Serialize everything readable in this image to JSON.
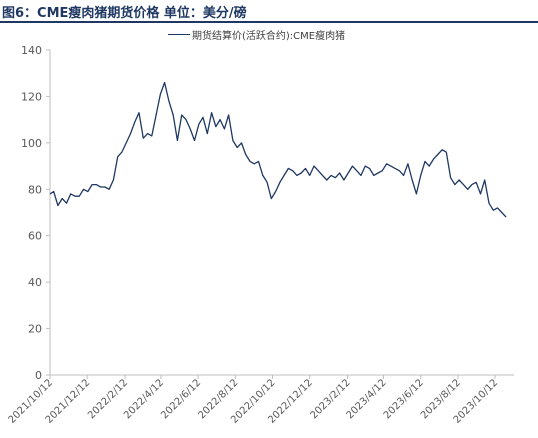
{
  "title": "图6：CME瘦肉猪期货价格 单位：美分/磅",
  "colors": {
    "series": "#1f3863",
    "axis": "#bfbfbf",
    "title": "#1f3863",
    "text": "#595959"
  },
  "chart_data": {
    "type": "line",
    "title": "图6：CME瘦肉猪期货价格 单位：美分/磅",
    "xlabel": "",
    "ylabel": "",
    "ylim": [
      0,
      140
    ],
    "yticks": [
      0,
      20,
      40,
      60,
      80,
      100,
      120,
      140
    ],
    "xlim": [
      "2021-10-12",
      "2023-11-12"
    ],
    "x_tick_labels": [
      "2021/10/12",
      "2021/12/12",
      "2022/2/12",
      "2022/4/12",
      "2022/6/12",
      "2022/8/12",
      "2022/10/12",
      "2022/12/12",
      "2023/2/12",
      "2023/4/12",
      "2023/6/12",
      "2023/8/12",
      "2023/10/12"
    ],
    "legend": "top-center",
    "grid": false,
    "series": [
      {
        "name": "期货结算价(活跃合约):CME瘦肉猪",
        "x": [
          "2021-10-12",
          "2021-10-18",
          "2021-10-25",
          "2021-11-01",
          "2021-11-08",
          "2021-11-15",
          "2021-11-22",
          "2021-11-29",
          "2021-12-06",
          "2021-12-13",
          "2021-12-20",
          "2021-12-27",
          "2022-01-03",
          "2022-01-10",
          "2022-01-17",
          "2022-01-24",
          "2022-01-31",
          "2022-02-07",
          "2022-02-14",
          "2022-02-21",
          "2022-02-28",
          "2022-03-07",
          "2022-03-14",
          "2022-03-21",
          "2022-03-28",
          "2022-04-04",
          "2022-04-11",
          "2022-04-18",
          "2022-04-25",
          "2022-05-02",
          "2022-05-09",
          "2022-05-16",
          "2022-05-23",
          "2022-05-30",
          "2022-06-06",
          "2022-06-13",
          "2022-06-20",
          "2022-06-27",
          "2022-07-04",
          "2022-07-11",
          "2022-07-18",
          "2022-07-25",
          "2022-08-01",
          "2022-08-08",
          "2022-08-15",
          "2022-08-22",
          "2022-08-29",
          "2022-09-05",
          "2022-09-12",
          "2022-09-19",
          "2022-09-26",
          "2022-10-03",
          "2022-10-10",
          "2022-10-17",
          "2022-10-24",
          "2022-10-31",
          "2022-11-07",
          "2022-11-14",
          "2022-11-21",
          "2022-11-28",
          "2022-12-05",
          "2022-12-12",
          "2022-12-19",
          "2022-12-26",
          "2023-01-02",
          "2023-01-09",
          "2023-01-16",
          "2023-01-23",
          "2023-01-30",
          "2023-02-06",
          "2023-02-13",
          "2023-02-20",
          "2023-02-27",
          "2023-03-06",
          "2023-03-13",
          "2023-03-20",
          "2023-03-27",
          "2023-04-03",
          "2023-04-10",
          "2023-04-17",
          "2023-04-24",
          "2023-05-01",
          "2023-05-08",
          "2023-05-15",
          "2023-05-22",
          "2023-05-29",
          "2023-06-05",
          "2023-06-12",
          "2023-06-19",
          "2023-06-26",
          "2023-07-03",
          "2023-07-10",
          "2023-07-17",
          "2023-07-24",
          "2023-07-31",
          "2023-08-07",
          "2023-08-14",
          "2023-08-21",
          "2023-08-28",
          "2023-09-04",
          "2023-09-11",
          "2023-09-18",
          "2023-09-25",
          "2023-10-02",
          "2023-10-09",
          "2023-10-16",
          "2023-10-23",
          "2023-10-30"
        ],
        "values": [
          78,
          79,
          73,
          76,
          74,
          78,
          77,
          77,
          80,
          79,
          82,
          82,
          81,
          81,
          80,
          84,
          94,
          96,
          100,
          104,
          109,
          113,
          102,
          104,
          103,
          112,
          121,
          126,
          118,
          112,
          101,
          112,
          110,
          106,
          101,
          108,
          111,
          104,
          113,
          107,
          110,
          106,
          112,
          101,
          98,
          100,
          95,
          92,
          91,
          92,
          86,
          83,
          76,
          79,
          83,
          86,
          89,
          88,
          86,
          87,
          89,
          86,
          90,
          88,
          86,
          84,
          86,
          85,
          87,
          84,
          87,
          90,
          88,
          86,
          90,
          89,
          86,
          87,
          88,
          91,
          90,
          89,
          88,
          86,
          91,
          84,
          78,
          86,
          92,
          90,
          93,
          95,
          97,
          96,
          85,
          82,
          84,
          82,
          80,
          82,
          83,
          78,
          84,
          74,
          71,
          72,
          70,
          68
        ]
      }
    ]
  }
}
